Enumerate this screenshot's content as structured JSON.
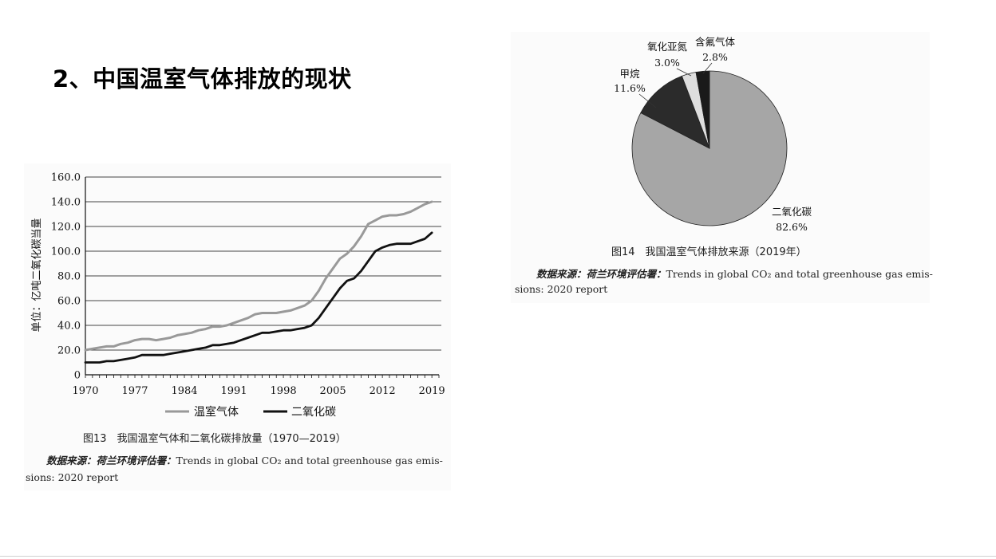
{
  "slide": {
    "title": "2、中国温室气体排放的现状"
  },
  "figure13": {
    "caption": "图13　我国温室气体和二氧化碳排放量（1970—2019）",
    "source_prefix": "数据来源：荷兰环境评估署：",
    "source_line1": "Trends in global CO₂ and total greenhouse gas emis-",
    "source_line2": "sions: 2020 report"
  },
  "figure14": {
    "caption": "图14　我国温室气体排放来源（2019年）",
    "source_prefix": "数据来源：荷兰环境评估署：",
    "source_line1": "Trends in global CO₂ and total greenhouse gas emis-",
    "source_line2": "sions: 2020 report"
  },
  "colors": {
    "ghg_line": "#999999",
    "co2_line": "#111111",
    "co2_slice": "#a6a6a6",
    "methane_slice": "#2b2b2b",
    "n2o_slice": "#dedede",
    "fgas_slice": "#1a1a1a"
  },
  "chart_data": [
    {
      "type": "line",
      "ylabel": "单位：亿吨二氧化碳当量",
      "xlabel": "",
      "ylim": [
        0,
        160
      ],
      "yticks": [
        "0",
        "20.0",
        "40.0",
        "60.0",
        "80.0",
        "100.0",
        "120.0",
        "140.0",
        "160.0"
      ],
      "xticks": [
        "1970",
        "1977",
        "1984",
        "1991",
        "1998",
        "2005",
        "2012",
        "2019"
      ],
      "grid": true,
      "legend_position": "bottom",
      "x": [
        1970,
        1971,
        1972,
        1973,
        1974,
        1975,
        1976,
        1977,
        1978,
        1979,
        1980,
        1981,
        1982,
        1983,
        1984,
        1985,
        1986,
        1987,
        1988,
        1989,
        1990,
        1991,
        1992,
        1993,
        1994,
        1995,
        1996,
        1997,
        1998,
        1999,
        2000,
        2001,
        2002,
        2003,
        2004,
        2005,
        2006,
        2007,
        2008,
        2009,
        2010,
        2011,
        2012,
        2013,
        2014,
        2015,
        2016,
        2017,
        2018,
        2019
      ],
      "series": [
        {
          "name": "温室气体",
          "values": [
            20,
            21,
            22,
            23,
            23,
            25,
            26,
            28,
            29,
            29,
            28,
            29,
            30,
            32,
            33,
            34,
            36,
            37,
            39,
            39,
            40,
            42,
            44,
            46,
            49,
            50,
            50,
            50,
            51,
            52,
            54,
            56,
            60,
            68,
            78,
            86,
            94,
            98,
            104,
            112,
            122,
            125,
            128,
            129,
            129,
            130,
            132,
            135,
            138,
            140
          ]
        },
        {
          "name": "二氧化碳",
          "values": [
            10,
            10,
            10,
            11,
            11,
            12,
            13,
            14,
            16,
            16,
            16,
            16,
            17,
            18,
            19,
            20,
            21,
            22,
            24,
            24,
            25,
            26,
            28,
            30,
            32,
            34,
            34,
            35,
            36,
            36,
            37,
            38,
            40,
            46,
            54,
            62,
            70,
            76,
            78,
            84,
            92,
            100,
            103,
            105,
            106,
            106,
            106,
            108,
            110,
            115
          ]
        }
      ]
    },
    {
      "type": "pie",
      "categories": [
        "二氧化碳",
        "甲烷",
        "氧化亚氮",
        "含氟气体"
      ],
      "values": [
        82.6,
        11.6,
        3.0,
        2.8
      ],
      "labels": [
        "82.6%",
        "11.6%",
        "3.0%",
        "2.8%"
      ]
    }
  ]
}
